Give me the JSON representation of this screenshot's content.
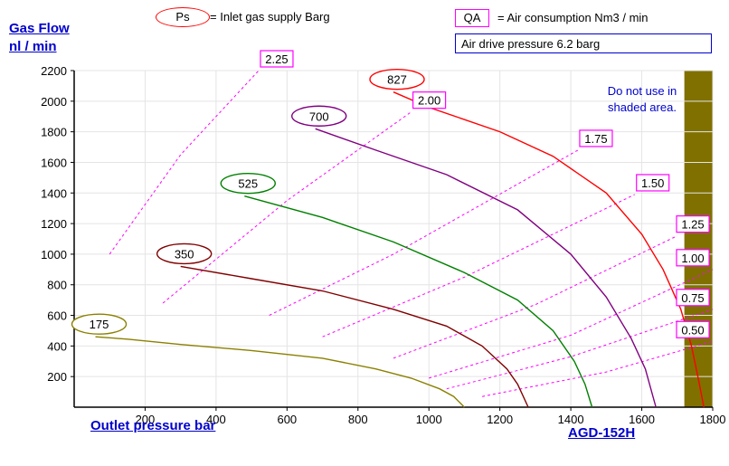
{
  "y_title_line1": "Gas Flow",
  "y_title_line2": "nl / min",
  "x_title": "Outlet pressure   bar",
  "model": "AGD-152H",
  "ps_legend": {
    "key": "Ps",
    "text": "= Inlet gas supply  Barg"
  },
  "qa_legend": {
    "key": "QA",
    "text": "= Air consumption  Nm3 / min"
  },
  "air_drive": "Air drive pressure  6.2 barg",
  "shaded_note_line1": "Do not use in",
  "shaded_note_line2": "shaded area.",
  "chart_data": {
    "type": "line",
    "xlabel": "Outlet pressure   bar",
    "ylabel": "Gas Flow nl / min",
    "xlim": [
      0,
      1800
    ],
    "ylim": [
      0,
      2200
    ],
    "x_ticks": [
      200,
      400,
      600,
      800,
      1000,
      1200,
      1400,
      1600,
      1800
    ],
    "y_ticks": [
      200,
      400,
      600,
      800,
      1000,
      1200,
      1400,
      1600,
      1800,
      2000,
      2200
    ],
    "shaded_region": {
      "x_from": 1720,
      "x_to": 1800,
      "color": "#807000"
    },
    "inlet_pressure_series": [
      {
        "name": "175",
        "color": "#8b8000",
        "points": [
          [
            60,
            460
          ],
          [
            150,
            445
          ],
          [
            300,
            410
          ],
          [
            500,
            370
          ],
          [
            700,
            320
          ],
          [
            850,
            250
          ],
          [
            950,
            190
          ],
          [
            1030,
            120
          ],
          [
            1070,
            70
          ],
          [
            1100,
            0
          ]
        ]
      },
      {
        "name": "350",
        "color": "#800000",
        "points": [
          [
            300,
            920
          ],
          [
            500,
            840
          ],
          [
            700,
            760
          ],
          [
            900,
            640
          ],
          [
            1050,
            530
          ],
          [
            1150,
            400
          ],
          [
            1220,
            250
          ],
          [
            1250,
            150
          ],
          [
            1280,
            0
          ]
        ]
      },
      {
        "name": "525",
        "color": "#008000",
        "points": [
          [
            480,
            1380
          ],
          [
            700,
            1240
          ],
          [
            900,
            1080
          ],
          [
            1100,
            880
          ],
          [
            1250,
            700
          ],
          [
            1350,
            500
          ],
          [
            1410,
            300
          ],
          [
            1440,
            150
          ],
          [
            1460,
            0
          ]
        ]
      },
      {
        "name": "700",
        "color": "#800080",
        "points": [
          [
            680,
            1820
          ],
          [
            850,
            1680
          ],
          [
            1050,
            1520
          ],
          [
            1250,
            1290
          ],
          [
            1400,
            1000
          ],
          [
            1500,
            720
          ],
          [
            1570,
            450
          ],
          [
            1610,
            250
          ],
          [
            1640,
            0
          ]
        ]
      },
      {
        "name": "827",
        "color": "#ff0000",
        "points": [
          [
            900,
            2060
          ],
          [
            1000,
            1960
          ],
          [
            1200,
            1800
          ],
          [
            1350,
            1640
          ],
          [
            1500,
            1400
          ],
          [
            1600,
            1130
          ],
          [
            1660,
            900
          ],
          [
            1710,
            640
          ],
          [
            1740,
            400
          ],
          [
            1760,
            180
          ],
          [
            1775,
            0
          ]
        ]
      }
    ],
    "air_consumption_series": [
      {
        "name": "2.25",
        "points": [
          [
            100,
            1000
          ],
          [
            300,
            1650
          ],
          [
            520,
            2200
          ]
        ]
      },
      {
        "name": "2.00",
        "points": [
          [
            250,
            680
          ],
          [
            600,
            1350
          ],
          [
            950,
            1930
          ]
        ]
      },
      {
        "name": "1.75",
        "points": [
          [
            550,
            600
          ],
          [
            900,
            1000
          ],
          [
            1420,
            1680
          ]
        ]
      },
      {
        "name": "1.50",
        "points": [
          [
            700,
            460
          ],
          [
            1100,
            850
          ],
          [
            1580,
            1390
          ]
        ]
      },
      {
        "name": "1.25",
        "points": [
          [
            900,
            320
          ],
          [
            1300,
            670
          ],
          [
            1700,
            1120
          ]
        ]
      },
      {
        "name": "1.00",
        "points": [
          [
            1000,
            190
          ],
          [
            1400,
            470
          ],
          [
            1800,
            900
          ]
        ]
      },
      {
        "name": "0.75",
        "points": [
          [
            1050,
            120
          ],
          [
            1400,
            330
          ],
          [
            1800,
            640
          ]
        ]
      },
      {
        "name": "0.50",
        "points": [
          [
            1150,
            70
          ],
          [
            1500,
            230
          ],
          [
            1800,
            430
          ]
        ]
      }
    ]
  }
}
